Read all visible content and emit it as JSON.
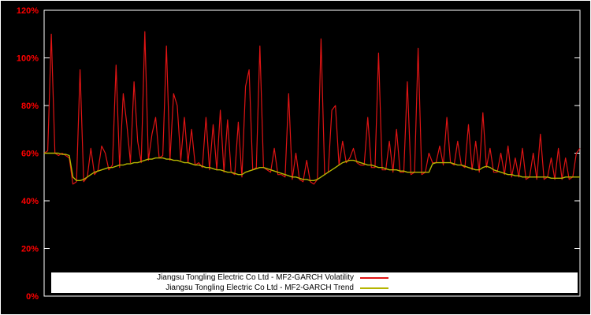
{
  "figure": {
    "background": "#000000",
    "border_color": "#ffffff",
    "axis_label_color": "#ff0000",
    "tick_mark_color": "#ffffff",
    "y_ticks": [
      "0%",
      "20%",
      "40%",
      "60%",
      "80%",
      "100%",
      "120%"
    ]
  },
  "legend": {
    "entries": [
      {
        "label": "Jiangsu Tongling Electric Co Ltd - MF2-GARCH Volatility",
        "color": "#e01414"
      },
      {
        "label": "Jiangsu Tongling Electric Co Ltd - MF2-GARCH Trend",
        "color": "#b5b500"
      }
    ]
  },
  "chart_data": {
    "type": "line",
    "title": "",
    "xlabel": "",
    "ylabel": "",
    "ylim": [
      0,
      120
    ],
    "y_tick_step": 20,
    "y_tick_format": "percent",
    "grid": false,
    "plot_background": "#000000",
    "legend_position": "bottom-center-inside",
    "x_axis": "time index (no visible x labels)",
    "series": [
      {
        "name": "Jiangsu Tongling Electric Co Ltd - MF2-GARCH Volatility",
        "color": "#e01414",
        "values": [
          60,
          61,
          110,
          60,
          59,
          60,
          59,
          58,
          47,
          48,
          95,
          48,
          50,
          62,
          51,
          53,
          63,
          60,
          53,
          55,
          97,
          54,
          85,
          72,
          56,
          90,
          65,
          56,
          111,
          57,
          68,
          75,
          58,
          59,
          105,
          57,
          85,
          80,
          57,
          75,
          56,
          70,
          55,
          56,
          54,
          75,
          53,
          72,
          53,
          78,
          52,
          74,
          52,
          51,
          73,
          50,
          88,
          95,
          53,
          54,
          105,
          54,
          53,
          52,
          62,
          51,
          51,
          50,
          85,
          49,
          60,
          49,
          48,
          57,
          48,
          47,
          49,
          108,
          51,
          52,
          78,
          80,
          55,
          65,
          56,
          58,
          62,
          56,
          55,
          55,
          75,
          54,
          54,
          102,
          53,
          53,
          65,
          52,
          70,
          52,
          52,
          90,
          51,
          52,
          104,
          51,
          52,
          60,
          56,
          56,
          63,
          55,
          75,
          56,
          55,
          65,
          55,
          54,
          72,
          53,
          65,
          52,
          77,
          54,
          62,
          52,
          52,
          60,
          51,
          63,
          50,
          58,
          50,
          62,
          49,
          50,
          60,
          49,
          68,
          49,
          50,
          58,
          49,
          62,
          49,
          58,
          49,
          50,
          60,
          62
        ]
      },
      {
        "name": "Jiangsu Tongling Electric Co Ltd - MF2-GARCH Trend",
        "color": "#b5b500",
        "values": [
          60,
          60,
          60,
          60,
          60,
          59.5,
          59.5,
          59,
          50,
          48.5,
          48.5,
          49,
          50,
          51,
          52,
          52.5,
          53,
          53.5,
          54,
          54,
          54.5,
          55,
          55,
          55.5,
          55.5,
          56,
          56,
          56.5,
          57,
          57.5,
          57.5,
          58,
          58,
          58,
          57.5,
          57.5,
          57,
          57,
          56.5,
          56,
          56,
          55.5,
          55,
          55,
          54.5,
          54,
          54,
          53.5,
          53,
          53,
          52.5,
          52,
          52,
          51.5,
          51,
          51,
          52,
          52.5,
          53,
          53.5,
          54,
          54,
          53.5,
          53,
          52.5,
          52,
          51.5,
          51,
          50.5,
          50,
          50,
          49.5,
          49,
          49,
          48.5,
          48.5,
          49,
          50,
          51,
          52,
          53,
          54,
          55,
          56,
          56.5,
          57,
          57,
          56.5,
          56,
          55.5,
          55,
          55,
          54.5,
          54,
          54,
          53.5,
          53,
          53,
          53,
          52.5,
          52.5,
          52,
          52,
          52,
          52,
          52,
          52,
          52,
          55.5,
          56,
          56,
          56,
          56,
          56,
          55.5,
          55,
          55,
          54.5,
          54,
          53.5,
          53,
          53,
          54,
          54.5,
          54,
          53,
          52.5,
          52,
          51.5,
          51,
          51,
          50.5,
          50.5,
          50,
          50,
          50,
          50,
          50,
          50,
          50,
          50,
          49.5,
          49.5,
          49.5,
          49.5,
          50,
          50,
          50,
          50,
          50
        ]
      }
    ]
  }
}
